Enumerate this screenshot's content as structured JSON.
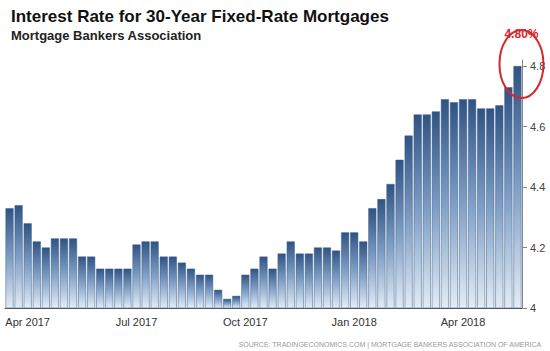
{
  "chart_data": {
    "type": "bar",
    "title": "Interest Rate for 30-Year Fixed-Rate Mortgages",
    "subtitle": "Mortgage Bankers Association",
    "source": "SOURCE: TRADINGECONOMICS.COM | MORTGAGE BANKERS ASSOCIATION OF AMERICA",
    "categories": [
      null,
      null,
      "Apr 2017",
      null,
      null,
      null,
      null,
      null,
      null,
      null,
      null,
      null,
      null,
      null,
      "Jul 2017",
      null,
      null,
      null,
      null,
      null,
      null,
      null,
      null,
      null,
      null,
      null,
      "Oct 2017",
      null,
      null,
      null,
      null,
      null,
      null,
      null,
      null,
      null,
      null,
      null,
      "Jan 2018",
      null,
      null,
      null,
      null,
      null,
      null,
      null,
      null,
      null,
      null,
      null,
      "Apr 2018",
      null,
      null,
      null,
      null,
      null,
      null
    ],
    "values": [
      4.33,
      4.34,
      4.28,
      4.22,
      4.2,
      4.23,
      4.23,
      4.23,
      4.17,
      4.17,
      4.13,
      4.13,
      4.13,
      4.13,
      4.21,
      4.22,
      4.22,
      4.17,
      4.17,
      4.15,
      4.13,
      4.11,
      4.11,
      4.06,
      4.03,
      4.04,
      4.11,
      4.13,
      4.17,
      4.13,
      4.18,
      4.22,
      4.18,
      4.18,
      4.2,
      4.2,
      4.19,
      4.25,
      4.25,
      4.22,
      4.33,
      4.36,
      4.41,
      4.49,
      4.57,
      4.64,
      4.64,
      4.65,
      4.69,
      4.68,
      4.69,
      4.69,
      4.66,
      4.66,
      4.67,
      4.73,
      4.8
    ],
    "color": "#2f5384",
    "ylim": [
      4,
      4.82
    ],
    "yticks": [
      4,
      4.2,
      4.4,
      4.6,
      4.8
    ],
    "grid": false,
    "annotation": {
      "text": "4.80%",
      "color": "#d7262b"
    }
  }
}
